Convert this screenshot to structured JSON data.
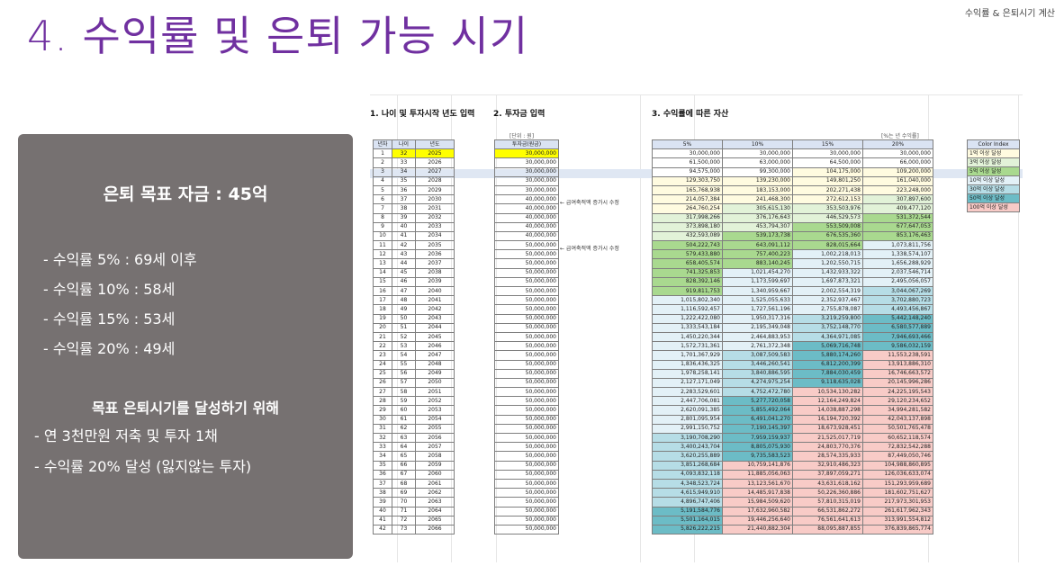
{
  "header": {
    "title": "4. 수익률 및 은퇴 가능 시기",
    "top_right": "수익률 & 은퇴시기 계산"
  },
  "panel": {
    "goal": "은퇴 목표 자금 : 45억",
    "rates": [
      "- 수익률   5% : 69세 이후",
      "- 수익률 10% : 58세",
      "- 수익률 15% : 53세",
      "- 수익률 20% : 49세"
    ],
    "strategy_title": "목표 은퇴시기를 달성하기 위해",
    "strategy": [
      "- 연 3천만원 저축 및 투자 1채",
      "- 수익률 20% 달성 (잃지않는 투자)"
    ]
  },
  "sheet": {
    "section1": "1. 나이 및 투자시작 년도 입력",
    "section2": "2. 투자금 입력",
    "section3": "3. 수익률에 따른 자산",
    "unit_label": "[단위 : 원]",
    "rate_note": "[%는 년 수익률]",
    "note_salary": "← 급여축적액 증가시 수정",
    "headers": {
      "year_no": "년차",
      "age": "나이",
      "year": "년도",
      "amount": "투자금(원금)",
      "r5": "5%",
      "r10": "10%",
      "r15": "15%",
      "r20": "20%"
    },
    "rows": [
      [
        "1",
        "32",
        "2025",
        "30,000,000",
        "30,000,000",
        "30,000,000",
        "30,000,000",
        "30,000,000"
      ],
      [
        "2",
        "33",
        "2026",
        "30,000,000",
        "61,500,000",
        "63,000,000",
        "64,500,000",
        "66,000,000"
      ],
      [
        "3",
        "34",
        "2027",
        "30,000,000",
        "94,575,000",
        "99,300,000",
        "104,175,000",
        "109,200,000"
      ],
      [
        "4",
        "35",
        "2028",
        "30,000,000",
        "129,303,750",
        "139,230,000",
        "149,801,250",
        "161,040,000"
      ],
      [
        "5",
        "36",
        "2029",
        "30,000,000",
        "165,768,938",
        "183,153,000",
        "202,271,438",
        "223,248,000"
      ],
      [
        "6",
        "37",
        "2030",
        "40,000,000",
        "214,057,384",
        "241,468,300",
        "272,612,153",
        "307,897,600"
      ],
      [
        "7",
        "38",
        "2031",
        "40,000,000",
        "264,760,254",
        "305,615,130",
        "353,503,976",
        "409,477,120"
      ],
      [
        "8",
        "39",
        "2032",
        "40,000,000",
        "317,998,266",
        "376,176,643",
        "446,529,573",
        "531,372,544"
      ],
      [
        "9",
        "40",
        "2033",
        "40,000,000",
        "373,898,180",
        "453,794,307",
        "553,509,008",
        "677,647,053"
      ],
      [
        "10",
        "41",
        "2034",
        "40,000,000",
        "432,593,089",
        "539,173,738",
        "676,535,360",
        "853,176,463"
      ],
      [
        "11",
        "42",
        "2035",
        "50,000,000",
        "504,222,743",
        "643,091,112",
        "828,015,664",
        "1,073,811,756"
      ],
      [
        "12",
        "43",
        "2036",
        "50,000,000",
        "579,433,880",
        "757,400,223",
        "1,002,218,013",
        "1,338,574,107"
      ],
      [
        "13",
        "44",
        "2037",
        "50,000,000",
        "658,405,574",
        "883,140,245",
        "1,202,550,715",
        "1,656,288,929"
      ],
      [
        "14",
        "45",
        "2038",
        "50,000,000",
        "741,325,853",
        "1,021,454,270",
        "1,432,933,322",
        "2,037,546,714"
      ],
      [
        "15",
        "46",
        "2039",
        "50,000,000",
        "828,392,146",
        "1,173,599,697",
        "1,697,873,321",
        "2,495,056,057"
      ],
      [
        "16",
        "47",
        "2040",
        "50,000,000",
        "919,811,753",
        "1,340,959,667",
        "2,002,554,319",
        "3,044,067,269"
      ],
      [
        "17",
        "48",
        "2041",
        "50,000,000",
        "1,015,802,340",
        "1,525,055,633",
        "2,352,937,467",
        "3,702,880,723"
      ],
      [
        "18",
        "49",
        "2042",
        "50,000,000",
        "1,116,592,457",
        "1,727,561,196",
        "2,755,878,087",
        "4,493,456,867"
      ],
      [
        "19",
        "50",
        "2043",
        "50,000,000",
        "1,222,422,080",
        "1,950,317,316",
        "3,219,259,800",
        "5,442,148,240"
      ],
      [
        "20",
        "51",
        "2044",
        "50,000,000",
        "1,333,543,184",
        "2,195,349,048",
        "3,752,148,770",
        "6,580,577,889"
      ],
      [
        "21",
        "52",
        "2045",
        "50,000,000",
        "1,450,220,344",
        "2,464,883,953",
        "4,364,971,085",
        "7,946,693,466"
      ],
      [
        "22",
        "53",
        "2046",
        "50,000,000",
        "1,572,731,361",
        "2,761,372,348",
        "5,069,716,748",
        "9,586,032,159"
      ],
      [
        "23",
        "54",
        "2047",
        "50,000,000",
        "1,701,367,929",
        "3,087,509,583",
        "5,880,174,260",
        "11,553,238,591"
      ],
      [
        "24",
        "55",
        "2048",
        "50,000,000",
        "1,836,436,325",
        "3,446,260,541",
        "6,812,200,399",
        "13,913,886,310"
      ],
      [
        "25",
        "56",
        "2049",
        "50,000,000",
        "1,978,258,141",
        "3,840,886,595",
        "7,884,030,459",
        "16,746,663,572"
      ],
      [
        "26",
        "57",
        "2050",
        "50,000,000",
        "2,127,171,049",
        "4,274,975,254",
        "9,118,635,028",
        "20,145,996,286"
      ],
      [
        "27",
        "58",
        "2051",
        "50,000,000",
        "2,283,529,601",
        "4,752,472,780",
        "10,534,130,282",
        "24,225,195,543"
      ],
      [
        "28",
        "59",
        "2052",
        "50,000,000",
        "2,447,706,081",
        "5,277,720,058",
        "12,164,249,824",
        "29,120,234,652"
      ],
      [
        "29",
        "60",
        "2053",
        "50,000,000",
        "2,620,091,385",
        "5,855,492,064",
        "14,038,887,298",
        "34,994,281,582"
      ],
      [
        "30",
        "61",
        "2054",
        "50,000,000",
        "2,801,095,954",
        "6,491,041,270",
        "16,194,720,392",
        "42,043,137,898"
      ],
      [
        "31",
        "62",
        "2055",
        "50,000,000",
        "2,991,150,752",
        "7,190,145,397",
        "18,673,928,451",
        "50,501,765,478"
      ],
      [
        "32",
        "63",
        "2056",
        "50,000,000",
        "3,190,708,290",
        "7,959,159,937",
        "21,525,017,719",
        "60,652,118,574"
      ],
      [
        "33",
        "64",
        "2057",
        "50,000,000",
        "3,400,243,704",
        "8,805,075,930",
        "24,803,770,376",
        "72,832,542,288"
      ],
      [
        "34",
        "65",
        "2058",
        "50,000,000",
        "3,620,255,889",
        "9,735,583,523",
        "28,574,335,933",
        "87,449,050,746"
      ],
      [
        "35",
        "66",
        "2059",
        "50,000,000",
        "3,851,268,684",
        "10,759,141,876",
        "32,910,486,323",
        "104,988,860,895"
      ],
      [
        "36",
        "67",
        "2060",
        "50,000,000",
        "4,093,832,118",
        "11,885,056,063",
        "37,897,059,271",
        "126,036,633,074"
      ],
      [
        "37",
        "68",
        "2061",
        "50,000,000",
        "4,348,523,724",
        "13,123,561,670",
        "43,631,618,162",
        "151,293,959,689"
      ],
      [
        "38",
        "69",
        "2062",
        "50,000,000",
        "4,615,949,910",
        "14,485,917,838",
        "50,226,360,886",
        "181,602,751,627"
      ],
      [
        "39",
        "70",
        "2063",
        "50,000,000",
        "4,896,747,406",
        "15,984,509,620",
        "57,810,315,019",
        "217,973,301,953"
      ],
      [
        "40",
        "71",
        "2064",
        "50,000,000",
        "5,191,584,776",
        "17,632,960,582",
        "66,531,862,272",
        "261,617,962,343"
      ],
      [
        "41",
        "72",
        "2065",
        "50,000,000",
        "5,501,164,015",
        "19,446,256,640",
        "76,561,641,613",
        "313,991,554,812"
      ],
      [
        "42",
        "73",
        "2066",
        "50,000,000",
        "5,826,222,215",
        "21,440,882,304",
        "88,095,887,855",
        "376,839,865,774"
      ]
    ],
    "legend": {
      "header": "Color Index",
      "items": [
        "1억 이상 달성",
        "3억 이상 달성",
        "5억 이상 달성",
        "10억 이상 달성",
        "30억 이상 달성",
        "50억 이상 달성",
        "100억 이상 달성"
      ],
      "colors": [
        "#fffbe0",
        "#e2f2d8",
        "#a9d98f",
        "#e3f1f7",
        "#b6dde6",
        "#6cbcc6",
        "#f8cbc7"
      ]
    }
  }
}
